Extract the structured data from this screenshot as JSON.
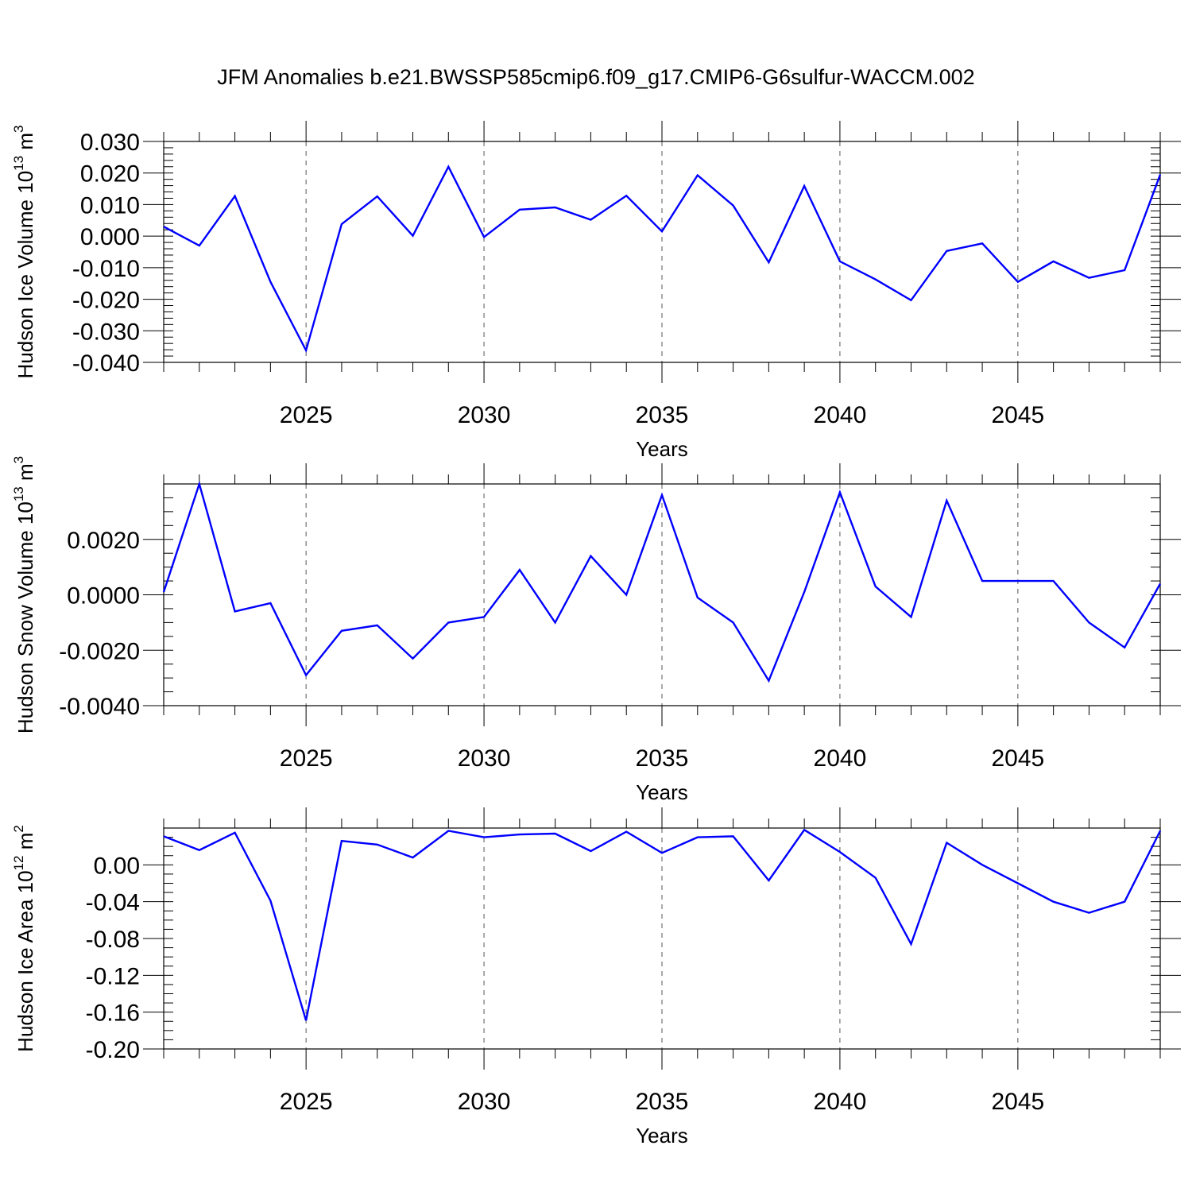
{
  "title": "JFM Anomalies b.e21.BWSSP585cmip6.f09_g17.CMIP6-G6sulfur-WACCM.002",
  "colors": {
    "line": "#0000ff",
    "axis": "#000000"
  },
  "chart_data": [
    {
      "type": "line",
      "ylabel_main": "Hudson Ice Volume 10",
      "ylabel_sup1": "13",
      "ylabel_mid": " m",
      "ylabel_sup2": "3",
      "xlabel": "Years",
      "xlim": [
        2021,
        2049
      ],
      "ylim": [
        -0.04,
        0.03
      ],
      "x_ticks": [
        2025,
        2030,
        2035,
        2040,
        2045
      ],
      "x_tick_labels": [
        "2025",
        "2030",
        "2035",
        "2040",
        "2045"
      ],
      "y_ticks": [
        0.03,
        0.02,
        0.01,
        0.0,
        -0.01,
        -0.02,
        -0.03,
        -0.04
      ],
      "y_tick_labels": [
        "0.030",
        "0.020",
        "0.010",
        "0.000",
        "-0.010",
        "-0.020",
        "-0.030",
        "-0.040"
      ],
      "grid": "x-dashed",
      "x": [
        2021,
        2022,
        2023,
        2024,
        2025,
        2026,
        2027,
        2028,
        2029,
        2030,
        2031,
        2032,
        2033,
        2034,
        2035,
        2036,
        2037,
        2038,
        2039,
        2040,
        2041,
        2042,
        2043,
        2044,
        2045,
        2046,
        2047,
        2048,
        2049
      ],
      "values": [
        0.003,
        -0.003,
        0.0127,
        -0.0145,
        -0.0362,
        0.0038,
        0.0126,
        0.0001,
        0.022,
        -0.0003,
        0.0084,
        0.0091,
        0.0052,
        0.0128,
        0.0015,
        0.0193,
        0.0097,
        -0.0083,
        0.0159,
        -0.008,
        -0.0137,
        -0.0203,
        -0.0047,
        -0.0023,
        -0.0145,
        -0.008,
        -0.0132,
        -0.0108,
        0.0195
      ]
    },
    {
      "type": "line",
      "ylabel_main": "Hudson Snow Volume 10",
      "ylabel_sup1": "13",
      "ylabel_mid": " m",
      "ylabel_sup2": "3",
      "xlabel": "Years",
      "xlim": [
        2021,
        2049
      ],
      "ylim": [
        -0.004,
        0.004
      ],
      "x_ticks": [
        2025,
        2030,
        2035,
        2040,
        2045
      ],
      "x_tick_labels": [
        "2025",
        "2030",
        "2035",
        "2040",
        "2045"
      ],
      "y_ticks": [
        0.002,
        0.0,
        -0.002,
        -0.004
      ],
      "y_tick_labels": [
        "0.0020",
        "0.0000",
        "-0.0020",
        "-0.0040"
      ],
      "grid": "x-dashed",
      "x": [
        2021,
        2022,
        2023,
        2024,
        2025,
        2026,
        2027,
        2028,
        2029,
        2030,
        2031,
        2032,
        2033,
        2034,
        2035,
        2036,
        2037,
        2038,
        2039,
        2040,
        2041,
        2042,
        2043,
        2044,
        2045,
        2046,
        2047,
        2048,
        2049
      ],
      "values": [
        0.0001,
        0.004,
        -0.0006,
        -0.0003,
        -0.0029,
        -0.0013,
        -0.0011,
        -0.0023,
        -0.001,
        -0.0008,
        0.0009,
        -0.001,
        0.0014,
        0.0,
        0.0036,
        -0.0001,
        -0.001,
        -0.0031,
        0.0001,
        0.0037,
        0.0003,
        -0.0008,
        0.0034,
        0.0005,
        0.0005,
        0.0005,
        -0.001,
        -0.0019,
        0.0004
      ]
    },
    {
      "type": "line",
      "ylabel_main": "Hudson Ice Area 10",
      "ylabel_sup1": "12",
      "ylabel_mid": " m",
      "ylabel_sup2": "2",
      "xlabel": "Years",
      "xlim": [
        2021,
        2049
      ],
      "ylim": [
        -0.2,
        0.04
      ],
      "x_ticks": [
        2025,
        2030,
        2035,
        2040,
        2045
      ],
      "x_tick_labels": [
        "2025",
        "2030",
        "2035",
        "2040",
        "2045"
      ],
      "y_ticks": [
        0.0,
        -0.04,
        -0.08,
        -0.12,
        -0.16,
        -0.2
      ],
      "y_tick_labels": [
        "0.00",
        "-0.04",
        "-0.08",
        "-0.12",
        "-0.16",
        "-0.20"
      ],
      "grid": "x-dashed",
      "x": [
        2021,
        2022,
        2023,
        2024,
        2025,
        2026,
        2027,
        2028,
        2029,
        2030,
        2031,
        2032,
        2033,
        2034,
        2035,
        2036,
        2037,
        2038,
        2039,
        2040,
        2041,
        2042,
        2043,
        2044,
        2045,
        2046,
        2047,
        2048,
        2049
      ],
      "values": [
        0.031,
        0.016,
        0.035,
        -0.039,
        -0.169,
        0.026,
        0.022,
        0.008,
        0.037,
        0.03,
        0.033,
        0.034,
        0.015,
        0.036,
        0.013,
        0.03,
        0.031,
        -0.017,
        0.038,
        0.014,
        -0.014,
        -0.086,
        0.024,
        0.0,
        -0.02,
        -0.04,
        -0.052,
        -0.04,
        0.037
      ]
    }
  ]
}
